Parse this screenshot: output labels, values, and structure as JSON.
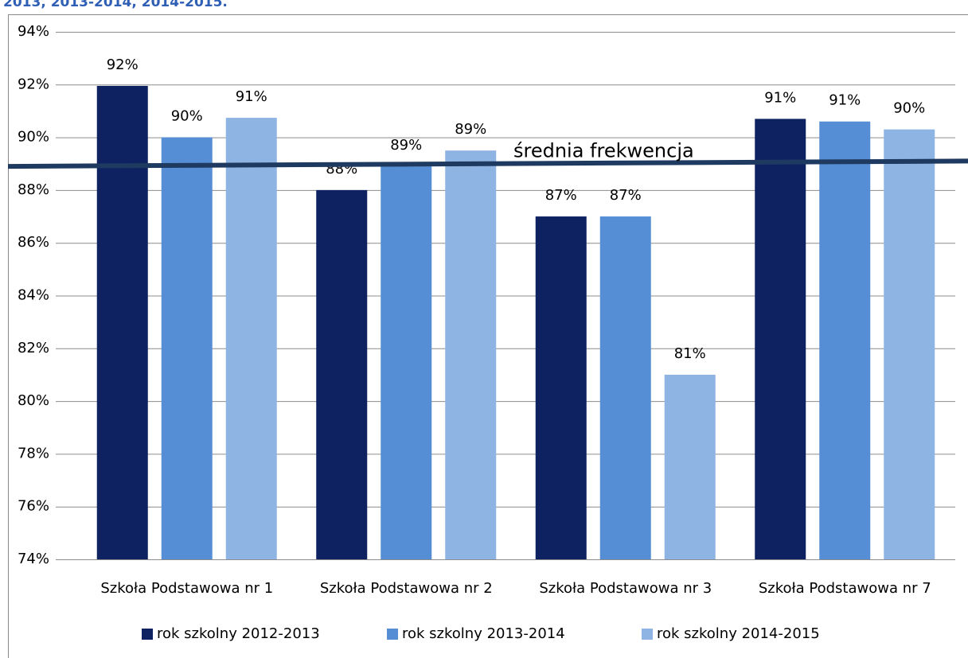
{
  "chart_data": {
    "type": "bar",
    "title": "2013, 2013-2014, 2014-2015.",
    "categories": [
      "Szkoła Podstawowa nr 1",
      "Szkoła Podstawowa nr 2",
      "Szkoła Podstawowa nr 3",
      "Szkoła Podstawowa nr 7"
    ],
    "series": [
      {
        "name": "rok szkolny 2012-2013",
        "color": "#0e2160",
        "values": [
          91.95,
          88.0,
          87.0,
          90.7
        ],
        "value_labels": [
          "92%",
          "88%",
          "87%",
          "91%"
        ]
      },
      {
        "name": "rok szkolny 2013-2014",
        "color": "#558ed5",
        "values": [
          90.0,
          88.9,
          87.0,
          90.6
        ],
        "value_labels": [
          "90%",
          "89%",
          "87%",
          "91%"
        ]
      },
      {
        "name": "rok szkolny 2014-2015",
        "color": "#8eb4e3",
        "values": [
          90.74,
          89.5,
          81.0,
          90.3
        ],
        "value_labels": [
          "91%",
          "89%",
          "81%",
          "90%"
        ]
      }
    ],
    "ylim": [
      74,
      94
    ],
    "yticks": [
      {
        "value": 74,
        "label": "74%"
      },
      {
        "value": 76,
        "label": "76%"
      },
      {
        "value": 78,
        "label": "78%"
      },
      {
        "value": 80,
        "label": "80%"
      },
      {
        "value": 82,
        "label": "82%"
      },
      {
        "value": 84,
        "label": "84%"
      },
      {
        "value": 86,
        "label": "86%"
      },
      {
        "value": 88,
        "label": "88%"
      },
      {
        "value": 90,
        "label": "90%"
      },
      {
        "value": 92,
        "label": "92%"
      },
      {
        "value": 94,
        "label": "94%"
      }
    ],
    "grid": true,
    "average_line": {
      "label": "średnia frekwencja",
      "start": 88.9,
      "end": 89.1,
      "color": "#1f3a60"
    }
  }
}
